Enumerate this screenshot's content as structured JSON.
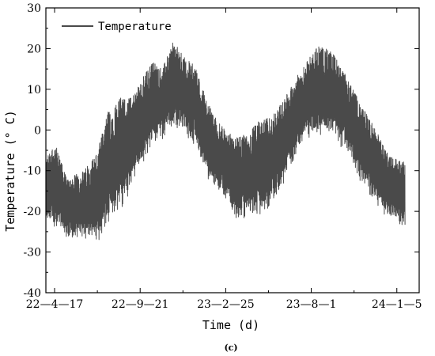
{
  "chart_data": {
    "type": "line",
    "xlabel": "Time (d)",
    "ylabel": "Temperature (° C)",
    "ylim": [
      -40,
      30
    ],
    "yticks": [
      -40,
      -30,
      -20,
      -10,
      0,
      10,
      20,
      30
    ],
    "xticks": [
      "22—4—17",
      "22—9—21",
      "23—2—25",
      "23—8—1",
      "24—1—5"
    ],
    "xlim": [
      "2022-04-01",
      "2024-02-15"
    ],
    "legend": {
      "placement": "top-left"
    },
    "grid": false,
    "caption": "(c)",
    "colors": {
      "series": "#4a4a4a"
    },
    "series": [
      {
        "name": "Temperature",
        "color": "#4a4a4a",
        "envelope": [
          {
            "x": "2022-04-01",
            "min": -22,
            "max": -7
          },
          {
            "x": "2022-04-17",
            "min": -25,
            "max": -3
          },
          {
            "x": "2022-05-10",
            "min": -27,
            "max": -12
          },
          {
            "x": "2022-06-10",
            "min": -27,
            "max": -10
          },
          {
            "x": "2022-07-05",
            "min": -28,
            "max": -5
          },
          {
            "x": "2022-07-25",
            "min": -24,
            "max": 5
          },
          {
            "x": "2022-08-15",
            "min": -22,
            "max": 8
          },
          {
            "x": "2022-09-05",
            "min": -14,
            "max": 8
          },
          {
            "x": "2022-09-21",
            "min": -10,
            "max": 12
          },
          {
            "x": "2022-10-15",
            "min": -4,
            "max": 17
          },
          {
            "x": "2022-11-01",
            "min": -3,
            "max": 15
          },
          {
            "x": "2022-11-20",
            "min": 0,
            "max": 22
          },
          {
            "x": "2022-12-10",
            "min": -2,
            "max": 18
          },
          {
            "x": "2022-12-30",
            "min": -4,
            "max": 16
          },
          {
            "x": "2023-01-20",
            "min": -12,
            "max": 8
          },
          {
            "x": "2023-02-10",
            "min": -15,
            "max": 2
          },
          {
            "x": "2023-02-25",
            "min": -18,
            "max": 0
          },
          {
            "x": "2023-03-15",
            "min": -23,
            "max": -2
          },
          {
            "x": "2023-04-05",
            "min": -22,
            "max": -1
          },
          {
            "x": "2023-04-25",
            "min": -22,
            "max": 2
          },
          {
            "x": "2023-05-15",
            "min": -20,
            "max": 3
          },
          {
            "x": "2023-06-10",
            "min": -14,
            "max": 7
          },
          {
            "x": "2023-07-05",
            "min": -6,
            "max": 13
          },
          {
            "x": "2023-07-25",
            "min": -3,
            "max": 17
          },
          {
            "x": "2023-08-15",
            "min": -2,
            "max": 21
          },
          {
            "x": "2023-09-10",
            "min": -3,
            "max": 19
          },
          {
            "x": "2023-10-05",
            "min": -6,
            "max": 13
          },
          {
            "x": "2023-11-01",
            "min": -14,
            "max": 6
          },
          {
            "x": "2023-11-25",
            "min": -18,
            "max": 1
          },
          {
            "x": "2023-12-15",
            "min": -22,
            "max": -5
          },
          {
            "x": "2024-01-05",
            "min": -24,
            "max": -7
          },
          {
            "x": "2024-01-20",
            "min": -24,
            "max": -8
          }
        ]
      }
    ]
  }
}
